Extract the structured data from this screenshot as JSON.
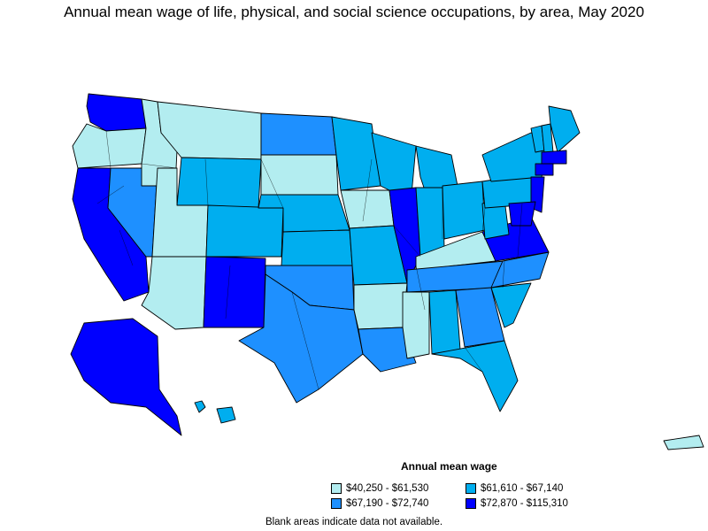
{
  "title": "Annual mean wage of life, physical, and social science occupations, by area, May 2020",
  "legend": {
    "title": "Annual mean wage",
    "items": [
      {
        "label": "$40,250 - $61,530",
        "color": "#b3edf0"
      },
      {
        "label": "$61,610 - $67,140",
        "color": "#00aeef"
      },
      {
        "label": "$67,190 - $72,740",
        "color": "#1e90ff"
      },
      {
        "label": "$72,870 - $115,310",
        "color": "#0000ff"
      }
    ]
  },
  "note": "Blank areas indicate data not available.",
  "map_regions": [
    {
      "region": "Washington",
      "class": 4
    },
    {
      "region": "Oregon",
      "class": 1
    },
    {
      "region": "California",
      "class": 4
    },
    {
      "region": "Nevada",
      "class": 3
    },
    {
      "region": "Idaho",
      "class": 1
    },
    {
      "region": "Montana",
      "class": 1
    },
    {
      "region": "Wyoming",
      "class": 2
    },
    {
      "region": "Utah",
      "class": 1
    },
    {
      "region": "Colorado",
      "class": 2
    },
    {
      "region": "Arizona",
      "class": 1
    },
    {
      "region": "New Mexico",
      "class": 4
    },
    {
      "region": "North Dakota",
      "class": 3
    },
    {
      "region": "South Dakota",
      "class": 1
    },
    {
      "region": "Nebraska",
      "class": 2
    },
    {
      "region": "Kansas",
      "class": 2
    },
    {
      "region": "Oklahoma",
      "class": 3
    },
    {
      "region": "Texas",
      "class": 3
    },
    {
      "region": "Minnesota",
      "class": 2
    },
    {
      "region": "Iowa",
      "class": 1
    },
    {
      "region": "Missouri",
      "class": 2
    },
    {
      "region": "Arkansas",
      "class": 1
    },
    {
      "region": "Louisiana",
      "class": 3
    },
    {
      "region": "Wisconsin",
      "class": 2
    },
    {
      "region": "Illinois",
      "class": 4
    },
    {
      "region": "Michigan",
      "class": 2
    },
    {
      "region": "Indiana",
      "class": 2
    },
    {
      "region": "Ohio",
      "class": 2
    },
    {
      "region": "Kentucky",
      "class": 1
    },
    {
      "region": "Tennessee",
      "class": 3
    },
    {
      "region": "Mississippi",
      "class": 1
    },
    {
      "region": "Alabama",
      "class": 2
    },
    {
      "region": "Georgia",
      "class": 3
    },
    {
      "region": "Florida",
      "class": 2
    },
    {
      "region": "South Carolina",
      "class": 2
    },
    {
      "region": "North Carolina",
      "class": 3
    },
    {
      "region": "Virginia",
      "class": 4
    },
    {
      "region": "West Virginia",
      "class": 2
    },
    {
      "region": "Pennsylvania",
      "class": 2
    },
    {
      "region": "New York",
      "class": 2
    },
    {
      "region": "Vermont",
      "class": 2
    },
    {
      "region": "New Hampshire",
      "class": 2
    },
    {
      "region": "Maine",
      "class": 2
    },
    {
      "region": "Massachusetts",
      "class": 4
    },
    {
      "region": "Connecticut",
      "class": 4
    },
    {
      "region": "New Jersey",
      "class": 4
    },
    {
      "region": "Maryland",
      "class": 4
    },
    {
      "region": "Alaska",
      "class": 4
    },
    {
      "region": "Hawaii",
      "class": 2
    },
    {
      "region": "Puerto Rico",
      "class": 1
    }
  ]
}
